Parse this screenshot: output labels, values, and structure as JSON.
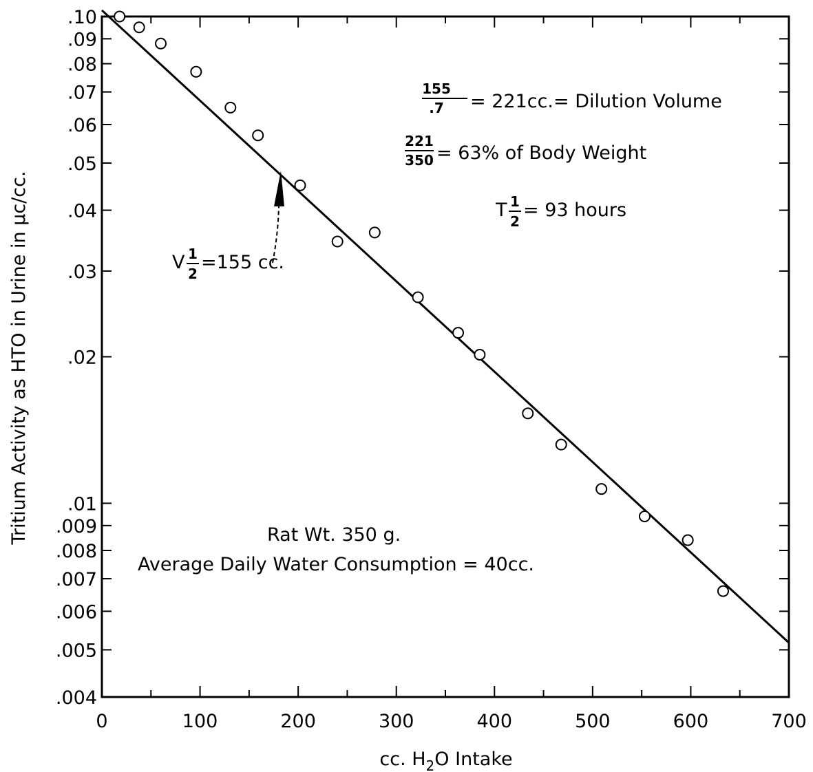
{
  "chart_data": {
    "type": "scatter",
    "scale": {
      "x": "linear",
      "y": "log"
    },
    "xlabel": "cc. H2O Intake",
    "xlabel_parts": {
      "pre": "cc. H",
      "sub": "2",
      "post": "O  Intake"
    },
    "ylabel": "Tritium Activity as HTO in Urine in µc/cc.",
    "xlim": [
      0,
      700
    ],
    "ylim": [
      0.004,
      0.1
    ],
    "x_ticks": [
      0,
      100,
      200,
      300,
      400,
      500,
      600,
      700
    ],
    "x_tick_labels": [
      "0",
      "100",
      "200",
      "300",
      "400",
      "500",
      "600",
      "700"
    ],
    "x_minor_ticks": [
      50,
      150,
      250,
      350,
      450,
      550,
      650
    ],
    "y_ticks": [
      0.1,
      0.09,
      0.08,
      0.07,
      0.06,
      0.05,
      0.04,
      0.03,
      0.02,
      0.01,
      0.009,
      0.008,
      0.007,
      0.006,
      0.005,
      0.004
    ],
    "y_tick_labels": [
      ".10",
      ".09",
      ".08",
      ".07",
      ".06",
      ".05",
      ".04",
      ".03",
      ".02",
      ".01",
      ".009",
      ".008",
      ".007",
      ".006",
      ".005",
      ".004"
    ],
    "grid": false,
    "points": [
      {
        "x": 18,
        "y": 0.1
      },
      {
        "x": 38,
        "y": 0.095
      },
      {
        "x": 60,
        "y": 0.088
      },
      {
        "x": 96,
        "y": 0.077
      },
      {
        "x": 131,
        "y": 0.065
      },
      {
        "x": 159,
        "y": 0.057
      },
      {
        "x": 202,
        "y": 0.045
      },
      {
        "x": 240,
        "y": 0.0345
      },
      {
        "x": 278,
        "y": 0.036
      },
      {
        "x": 322,
        "y": 0.0265
      },
      {
        "x": 363,
        "y": 0.0224
      },
      {
        "x": 385,
        "y": 0.0202
      },
      {
        "x": 434,
        "y": 0.0153
      },
      {
        "x": 468,
        "y": 0.0132
      },
      {
        "x": 509,
        "y": 0.0107
      },
      {
        "x": 553,
        "y": 0.0094
      },
      {
        "x": 597,
        "y": 0.0084
      },
      {
        "x": 633,
        "y": 0.0066
      }
    ],
    "fit_line": {
      "x": [
        0,
        700
      ],
      "y": [
        0.103,
        0.00517
      ]
    },
    "arrow_target": {
      "x": 183,
      "y": 0.05
    },
    "annotations": {
      "dilution": {
        "num": "155",
        "den": ".7",
        "text": "= 221cc.= Dilution Volume"
      },
      "bodyweight": {
        "num": "221",
        "den": "350",
        "text": "= 63% of Body Weight"
      },
      "thalf": {
        "main": "T",
        "num": "1",
        "den": "2",
        "text": "= 93 hours"
      },
      "vhalf": {
        "main": "V",
        "num": "1",
        "den": "2",
        "text": "=155 cc."
      },
      "rat": "Rat  Wt.  350 g.",
      "consumption": "Average Daily Water Consumption = 40cc."
    }
  }
}
